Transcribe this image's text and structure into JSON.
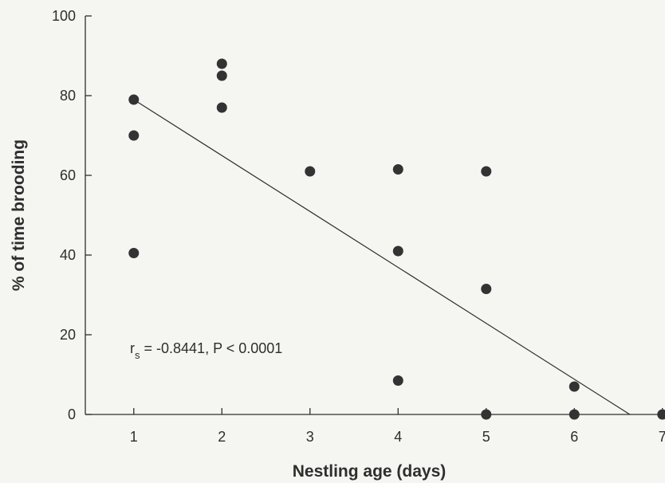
{
  "chart_data": {
    "type": "scatter",
    "title": "",
    "xlabel": "Nestling age (days)",
    "ylabel": "% of time brooding",
    "xlim": [
      0.45,
      7.0
    ],
    "ylim": [
      0,
      100
    ],
    "xticks": [
      1,
      2,
      3,
      4,
      5,
      6,
      7
    ],
    "yticks": [
      0,
      20,
      40,
      60,
      80,
      100
    ],
    "grid": false,
    "points": [
      {
        "x": 1,
        "y": 79
      },
      {
        "x": 1,
        "y": 70
      },
      {
        "x": 1,
        "y": 40.5
      },
      {
        "x": 2,
        "y": 88
      },
      {
        "x": 2,
        "y": 85
      },
      {
        "x": 2,
        "y": 77
      },
      {
        "x": 3,
        "y": 61
      },
      {
        "x": 4,
        "y": 61.5
      },
      {
        "x": 4,
        "y": 41
      },
      {
        "x": 4,
        "y": 8.5
      },
      {
        "x": 5,
        "y": 61
      },
      {
        "x": 5,
        "y": 31.5
      },
      {
        "x": 5,
        "y": 0
      },
      {
        "x": 6,
        "y": 7
      },
      {
        "x": 6,
        "y": 0
      },
      {
        "x": 7,
        "y": 0
      }
    ],
    "trendline": {
      "x": [
        1,
        6.63
      ],
      "y": [
        79,
        0
      ]
    },
    "annotation": {
      "r": "r",
      "sub": "s",
      "text": " = -0.8441, P < 0.0001"
    }
  }
}
